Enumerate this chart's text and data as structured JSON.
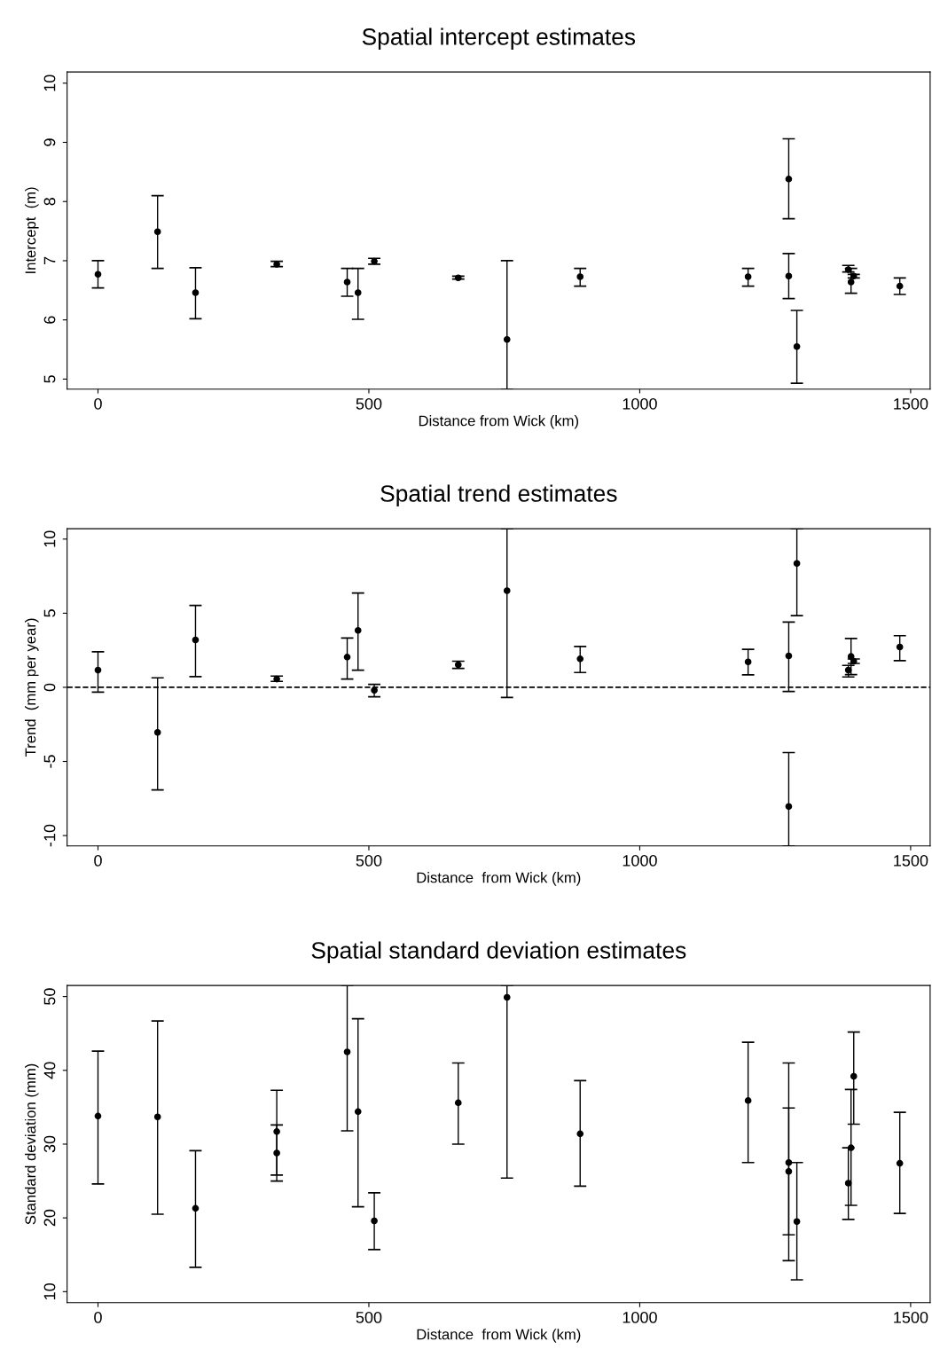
{
  "chart_data": [
    {
      "type": "scatter",
      "title": "Spatial intercept estimates",
      "xlabel": "Distance from Wick (km)",
      "ylabel": "Intercept  (m)",
      "x": [
        0,
        110,
        180,
        330,
        460,
        480,
        510,
        665,
        755,
        890,
        1200,
        1275,
        1275,
        1290,
        1385,
        1390,
        1395,
        1480
      ],
      "series": [
        {
          "color": "#000000",
          "values": [
            6.77,
            7.49,
            6.46,
            6.94,
            6.64,
            6.46,
            6.99,
            6.71,
            5.67,
            6.73,
            6.73,
            8.38,
            6.74,
            5.55,
            6.85,
            6.64,
            6.74,
            6.57
          ],
          "errors": [
            [
              6.54,
              7.0
            ],
            [
              6.87,
              8.1
            ],
            [
              6.02,
              6.88
            ],
            [
              6.9,
              6.99
            ],
            [
              6.4,
              6.87
            ],
            [
              6.01,
              6.87
            ],
            [
              6.94,
              7.04
            ],
            [
              6.69,
              6.74
            ],
            [
              4.83,
              7.0
            ],
            [
              6.57,
              6.87
            ],
            [
              6.57,
              6.87
            ],
            [
              7.71,
              9.06
            ],
            [
              6.36,
              7.12
            ],
            [
              4.93,
              6.16
            ],
            [
              6.81,
              6.92
            ],
            [
              6.45,
              6.87
            ],
            [
              6.71,
              6.77
            ],
            [
              6.43,
              6.71
            ]
          ]
        }
      ],
      "xlim": [
        -57,
        1536
      ],
      "ylim": [
        4.83,
        10.19
      ],
      "xticks": [
        0,
        500,
        1000,
        1500
      ],
      "yticks": [
        5,
        6,
        7,
        8,
        9,
        10
      ],
      "marker": "circle",
      "grid": false,
      "legend": false
    },
    {
      "type": "scatter",
      "title": "Spatial trend estimates",
      "xlabel": "Distance  from Wick (km)",
      "ylabel": "Trend  (mm per year)",
      "x": [
        0,
        110,
        180,
        330,
        460,
        480,
        510,
        665,
        755,
        890,
        1200,
        1275,
        1275,
        1290,
        1385,
        1390,
        1395,
        1480
      ],
      "series": [
        {
          "color": "#000000",
          "values": [
            1.16,
            -3.04,
            3.2,
            0.56,
            2.04,
            3.84,
            -0.2,
            1.52,
            6.52,
            1.92,
            1.72,
            2.12,
            -8.04,
            8.36,
            1.16,
            2.08,
            1.76,
            2.72
          ],
          "errors": [
            [
              -0.32,
              2.4
            ],
            [
              -6.92,
              0.64
            ],
            [
              0.72,
              5.52
            ],
            [
              0.4,
              0.76
            ],
            [
              0.56,
              3.32
            ],
            [
              1.16,
              6.36
            ],
            [
              -0.64,
              0.2
            ],
            [
              1.28,
              1.76
            ],
            [
              -0.68,
              10.7
            ],
            [
              1.0,
              2.76
            ],
            [
              0.84,
              2.56
            ],
            [
              -0.28,
              4.4
            ],
            [
              -10.7,
              -4.4
            ],
            [
              4.84,
              10.7
            ],
            [
              0.7,
              1.48
            ],
            [
              0.86,
              3.3
            ],
            [
              1.61,
              1.91
            ],
            [
              1.8,
              3.48
            ]
          ]
        }
      ],
      "ref_lines": [
        {
          "axis": "y",
          "value": 0,
          "color": "#000000",
          "line_style": "dashed"
        }
      ],
      "xlim": [
        -57,
        1536
      ],
      "ylim": [
        -10.7,
        10.7
      ],
      "xticks": [
        0,
        500,
        1000,
        1500
      ],
      "yticks": [
        -10,
        -5,
        0,
        5,
        10
      ],
      "marker": "circle",
      "grid": false,
      "legend": false
    },
    {
      "type": "scatter",
      "title": "Spatial standard deviation estimates",
      "xlabel": "Distance  from Wick (km)",
      "ylabel": "Standard deviation (mm)",
      "x": [
        0,
        110,
        180,
        330,
        330,
        460,
        480,
        510,
        665,
        755,
        890,
        1200,
        1275,
        1275,
        1290,
        1385,
        1390,
        1395,
        1480
      ],
      "series": [
        {
          "color": "#000000",
          "values": [
            33.8,
            33.7,
            21.3,
            31.7,
            28.8,
            42.5,
            34.4,
            19.6,
            35.6,
            49.9,
            31.4,
            35.9,
            27.5,
            26.3,
            19.5,
            24.7,
            29.5,
            39.2,
            27.4
          ],
          "errors": [
            [
              24.6,
              42.6
            ],
            [
              20.5,
              46.7
            ],
            [
              13.3,
              29.1
            ],
            [
              25.8,
              37.3
            ],
            [
              25.0,
              32.6
            ],
            [
              31.8,
              51.5
            ],
            [
              21.5,
              47.0
            ],
            [
              15.7,
              23.4
            ],
            [
              30.0,
              41.0
            ],
            [
              25.4,
              51.5
            ],
            [
              24.3,
              38.6
            ],
            [
              27.5,
              43.8
            ],
            [
              17.7,
              34.9
            ],
            [
              14.2,
              41.0
            ],
            [
              11.6,
              27.5
            ],
            [
              19.8,
              29.5
            ],
            [
              21.7,
              37.4
            ],
            [
              32.7,
              45.2
            ],
            [
              20.6,
              34.3
            ]
          ]
        }
      ],
      "xlim": [
        -57,
        1536
      ],
      "ylim": [
        8.5,
        51.5
      ],
      "xticks": [
        0,
        500,
        1000,
        1500
      ],
      "yticks": [
        10,
        20,
        30,
        40,
        50
      ],
      "marker": "circle",
      "grid": false,
      "legend": false
    }
  ]
}
